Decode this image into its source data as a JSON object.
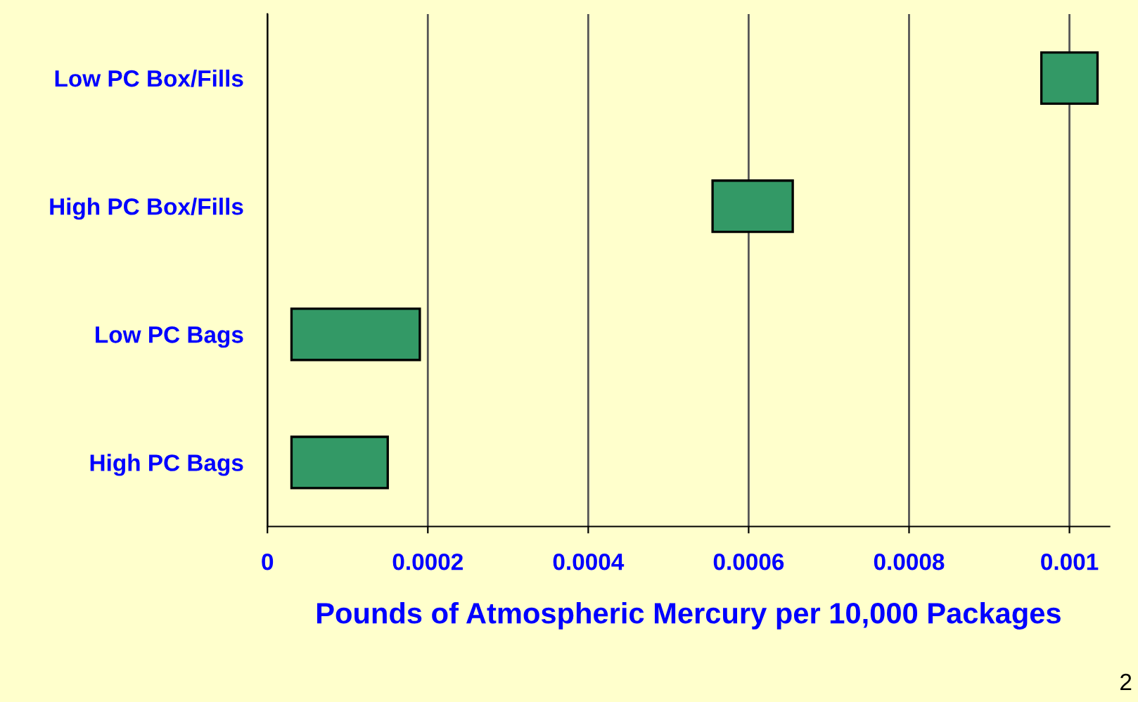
{
  "chart_data": {
    "type": "bar",
    "orientation": "horizontal",
    "xlabel": "Pounds of Atmospheric Mercury per 10,000 Packages",
    "categories": [
      "Low PC Box/Fills",
      "High PC Box/Fills",
      "Low PC Bags",
      "High PC Bags"
    ],
    "base": [
      0.000965,
      0.000555,
      3e-05,
      3e-05
    ],
    "values": [
      7e-05,
      0.0001,
      0.00016,
      0.00012
    ],
    "color": "#339966",
    "xlim": [
      0,
      0.00105
    ],
    "xticks": [
      0,
      0.0002,
      0.0004,
      0.0006,
      0.0008,
      0.001
    ],
    "grid": "x",
    "annotations": [
      "2"
    ]
  }
}
